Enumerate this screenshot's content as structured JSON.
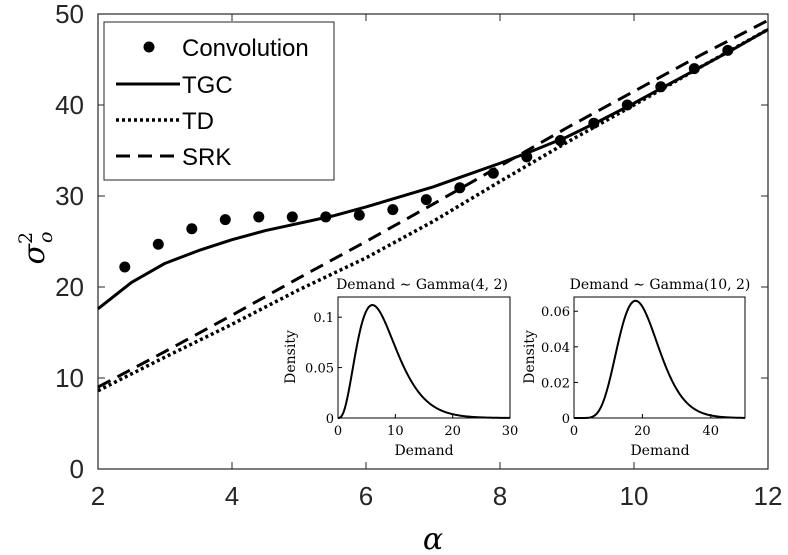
{
  "chart_data": [
    {
      "type": "line",
      "xlabel": "α",
      "ylabel": "σ_o^2",
      "xlim": [
        2,
        12
      ],
      "ylim": [
        0,
        50
      ],
      "xticks": [
        2,
        4,
        6,
        8,
        10,
        12
      ],
      "yticks": [
        0,
        10,
        20,
        30,
        40,
        50
      ],
      "grid": false,
      "legend_position": "top-left",
      "series": [
        {
          "name": "Convolution",
          "style": "markers",
          "x": [
            2.4,
            2.9,
            3.4,
            3.9,
            4.4,
            4.9,
            5.4,
            5.9,
            6.4,
            6.9,
            7.4,
            7.9,
            8.4,
            8.9,
            9.4,
            9.9,
            10.4,
            10.9,
            11.4
          ],
          "y": [
            22.2,
            24.7,
            26.4,
            27.4,
            27.7,
            27.7,
            27.7,
            27.9,
            28.5,
            29.6,
            30.9,
            32.5,
            34.3,
            36.1,
            38.0,
            40.0,
            42.0,
            44.0,
            46.0
          ]
        },
        {
          "name": "TGC",
          "style": "solid",
          "x": [
            2.0,
            2.5,
            3.0,
            3.5,
            4.0,
            4.5,
            5.0,
            5.5,
            6.0,
            6.5,
            7.0,
            7.5,
            8.0,
            8.5,
            9.0,
            9.5,
            10.0,
            10.5,
            11.0,
            11.5,
            12.0
          ],
          "y": [
            17.6,
            20.5,
            22.6,
            24.0,
            25.2,
            26.2,
            27.0,
            27.8,
            28.8,
            29.9,
            31.0,
            32.3,
            33.6,
            35.0,
            36.5,
            38.3,
            40.2,
            42.2,
            44.2,
            46.2,
            48.3
          ]
        },
        {
          "name": "TD",
          "style": "dotted",
          "x": [
            2,
            3,
            4,
            5,
            6,
            7,
            8,
            9,
            10,
            11,
            12
          ],
          "y": [
            8.6,
            12.3,
            15.9,
            19.7,
            23.2,
            27.2,
            31.6,
            35.9,
            40.0,
            44.2,
            48.3
          ]
        },
        {
          "name": "SRK",
          "style": "dashed",
          "x": [
            2,
            3,
            4,
            5,
            6,
            7,
            8,
            9,
            10,
            11,
            12
          ],
          "y": [
            9.0,
            12.9,
            16.9,
            21.0,
            25.0,
            29.1,
            33.3,
            37.5,
            41.5,
            45.5,
            49.3
          ]
        }
      ]
    },
    {
      "type": "line",
      "title": "Demand ~ Gamma(4, 2)",
      "xlabel": "Demand",
      "ylabel": "Density",
      "xlim": [
        0,
        30
      ],
      "ylim": [
        0,
        0.12
      ],
      "xticks": [
        0,
        10,
        20,
        30
      ],
      "yticks": [
        0,
        0.05,
        0.1
      ],
      "shape": 4,
      "scale": 2,
      "series": [
        {
          "name": "",
          "values_fn": "gamma_pdf"
        }
      ]
    },
    {
      "type": "line",
      "title": "Demand ~ Gamma(10, 2)",
      "xlabel": "Demand",
      "ylabel": "Density",
      "xlim": [
        0,
        50
      ],
      "ylim": [
        0,
        0.068
      ],
      "xticks": [
        0,
        20,
        40
      ],
      "yticks": [
        0,
        0.02,
        0.04,
        0.06
      ],
      "shape": 10,
      "scale": 2,
      "series": [
        {
          "name": "",
          "values_fn": "gamma_pdf"
        }
      ]
    }
  ],
  "legend": {
    "items": [
      "Convolution",
      "TGC",
      "TD",
      "SRK"
    ]
  },
  "inset1_title": {
    "prefix": "Demand",
    "dist": "Gamma(4, 2)"
  },
  "inset2_title": {
    "prefix": "Demand",
    "dist": "Gamma(10, 2)"
  }
}
